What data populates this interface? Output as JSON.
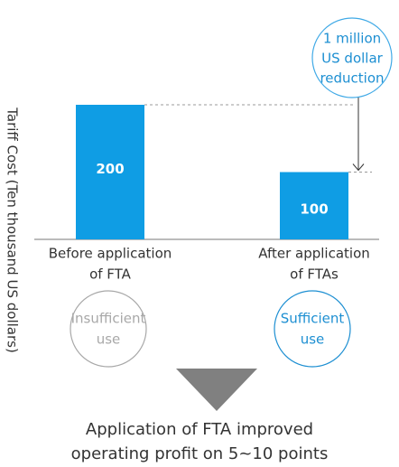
{
  "chart_data": {
    "type": "bar",
    "ylabel": "Tariff Cost (Ten thousand US dollars)",
    "categories": [
      [
        "Before application",
        "of FTA"
      ],
      [
        "After application",
        "of FTAs"
      ]
    ],
    "values": [
      200,
      100
    ],
    "color": "#0f9de4",
    "annotation": [
      "1 million",
      "US dollar",
      "reduction"
    ],
    "usage": [
      {
        "label": [
          "Insufficient",
          "use"
        ],
        "color": "#a8a8a8"
      },
      {
        "label": [
          "Sufficient",
          "use"
        ],
        "color": "#1d8fd2"
      }
    ],
    "conclusion": [
      "Application of FTA improved",
      "operating profit on 5~10 points"
    ]
  }
}
